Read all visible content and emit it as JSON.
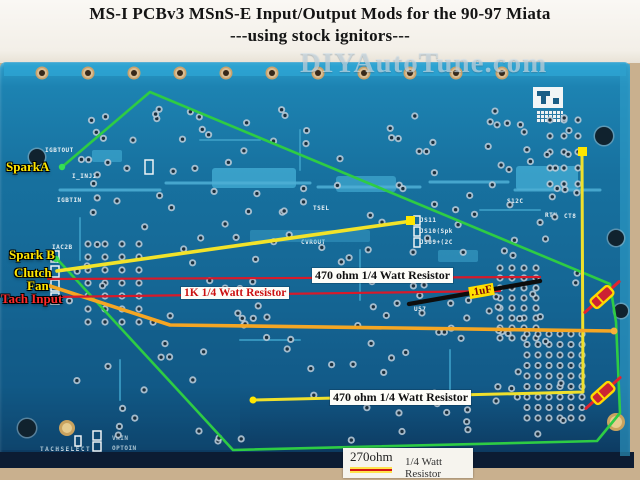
{
  "title": {
    "line1": "MS-I PCBv3 MSnS-E Input/Output Mods for the 90-97 Miata",
    "line2": "---using stock ignitors---"
  },
  "watermark": "DIYAutoTune.com",
  "pin_labels": {
    "spark_a": "SparkA",
    "spark_b": "Spark B",
    "clutch": "Clutch",
    "fan": "Fan",
    "tach_input": "Tach Input"
  },
  "annotations": {
    "resistor_470_top": "470 ohm 1/4 Watt Resistor",
    "resistor_1k": "1K 1/4 Watt Resistor",
    "capacitor": ".1uF",
    "resistor_470_bottom": "470 ohm 1/4 Watt Resistor"
  },
  "legend": {
    "value": "270ohm",
    "description": "1/4 Watt Resistor"
  },
  "silkscreen": [
    "IGBTOUT",
    "I_INJ1",
    "IGBTIN",
    "IAC2B",
    "TSEL",
    "CVROUT",
    "JS11",
    "JS10(Spk",
    "JS09+(2C",
    "S12C",
    "RTN",
    "CT8",
    "U57",
    "TACHSELECT",
    "VRIN",
    "OPTOIN"
  ],
  "colors": {
    "board_blue": "#156795",
    "spark_wire_green": "#2ecc44",
    "clutch_wire_yellow": "#f2e32a",
    "fan_wire_orange": "#f5a623",
    "tach_wire_red": "#d81a2a",
    "capacitor_wire_black": "#0d0d0d",
    "resistor_symbol_red": "#e02330",
    "resistor_symbol_yellow": "#ffd800",
    "label_yellow": "#ffe600",
    "label_red": "#ff2a2a"
  }
}
